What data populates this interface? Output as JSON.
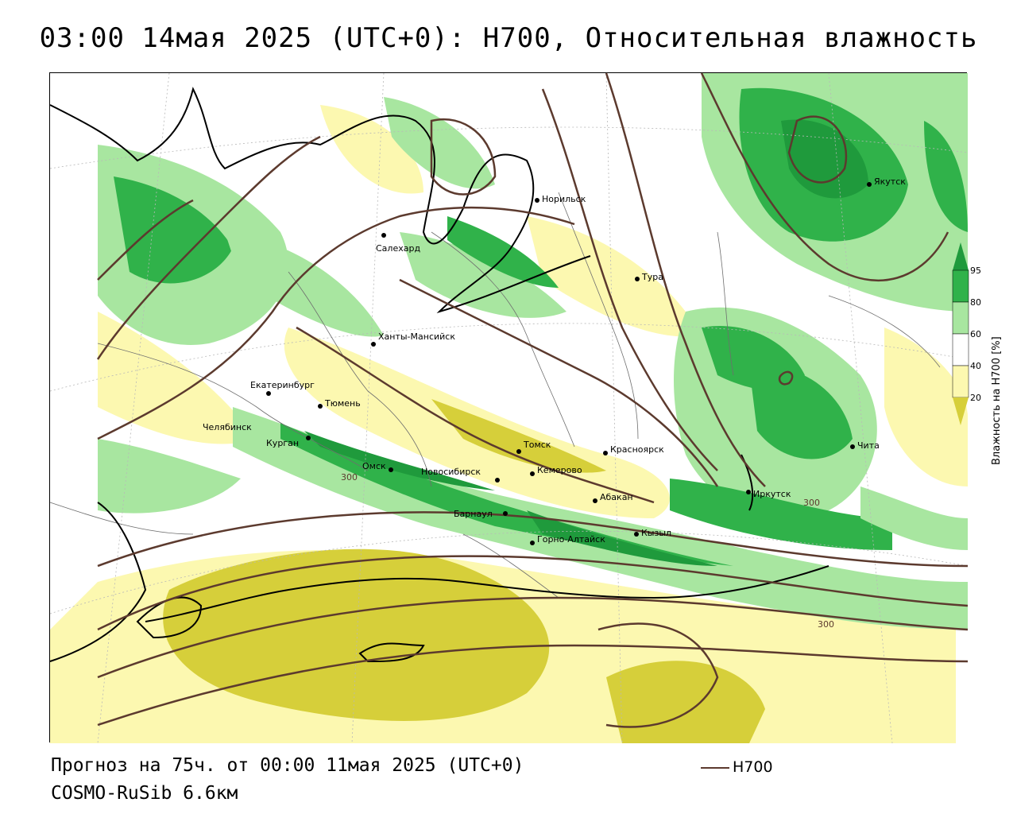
{
  "title": "03:00 14мая 2025 (UTC+0): H700, Относительная влажность",
  "forecast_line": "Прогноз на 75ч. от 00:00 11мая 2025 (UTC+0)",
  "model_line": "COSMO-RuSib 6.6км",
  "series_legend_label": "H700",
  "colorbar": {
    "title": "Влажность на H700 [%]",
    "ticks": [
      "95",
      "80",
      "60",
      "40",
      "20"
    ],
    "colors": {
      "above_95": "#1f9a3c",
      "80_95": "#30b24a",
      "60_80": "#a8e6a0",
      "40_60": "#ffffff",
      "20_40": "#fcf8b0",
      "below_20": "#d6cf3a"
    }
  },
  "contour_labels": [
    "300",
    "300",
    "300"
  ],
  "cities": [
    "Норильск",
    "Салехард",
    "Якутск",
    "Тура",
    "Ханты-Мансийск",
    "Екатеринбург",
    "Тюмень",
    "Челябинск",
    "Курган",
    "Омск",
    "Новосибирск",
    "Томск",
    "Кемерово",
    "Красноярск",
    "Барнаул",
    "Абакан",
    "Горно-Алтайск",
    "Кызыл",
    "Иркутск",
    "Чита"
  ],
  "contour_color": "#5c3a2e"
}
